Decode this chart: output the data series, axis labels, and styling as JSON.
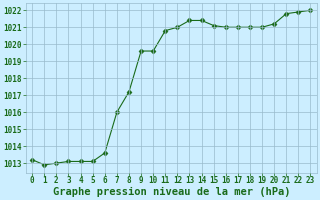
{
  "hours": [
    0,
    1,
    2,
    3,
    4,
    5,
    6,
    7,
    8,
    9,
    10,
    11,
    12,
    13,
    14,
    15,
    16,
    17,
    18,
    19,
    20,
    21,
    22,
    23
  ],
  "pressure": [
    1013.2,
    1012.9,
    1013.0,
    1013.1,
    1013.1,
    1013.1,
    1013.6,
    1016.0,
    1017.2,
    1019.6,
    1019.6,
    1020.8,
    1021.0,
    1021.4,
    1021.4,
    1021.1,
    1021.0,
    1021.0,
    1021.0,
    1021.0,
    1021.2,
    1021.8,
    1021.9,
    1022.0
  ],
  "line_color": "#1a6b1a",
  "marker": "D",
  "markersize": 2.5,
  "bg_color": "#cceeff",
  "grid_color": "#99bbcc",
  "xlabel": "Graphe pression niveau de la mer (hPa)",
  "xlabel_color": "#1a6b1a",
  "xlabel_fontsize": 7.5,
  "yticks": [
    1013,
    1014,
    1015,
    1016,
    1017,
    1018,
    1019,
    1020,
    1021,
    1022
  ],
  "ylim": [
    1012.4,
    1022.4
  ],
  "xlim": [
    -0.5,
    23.5
  ],
  "tick_color": "#1a6b1a",
  "tick_fontsize": 5.5
}
